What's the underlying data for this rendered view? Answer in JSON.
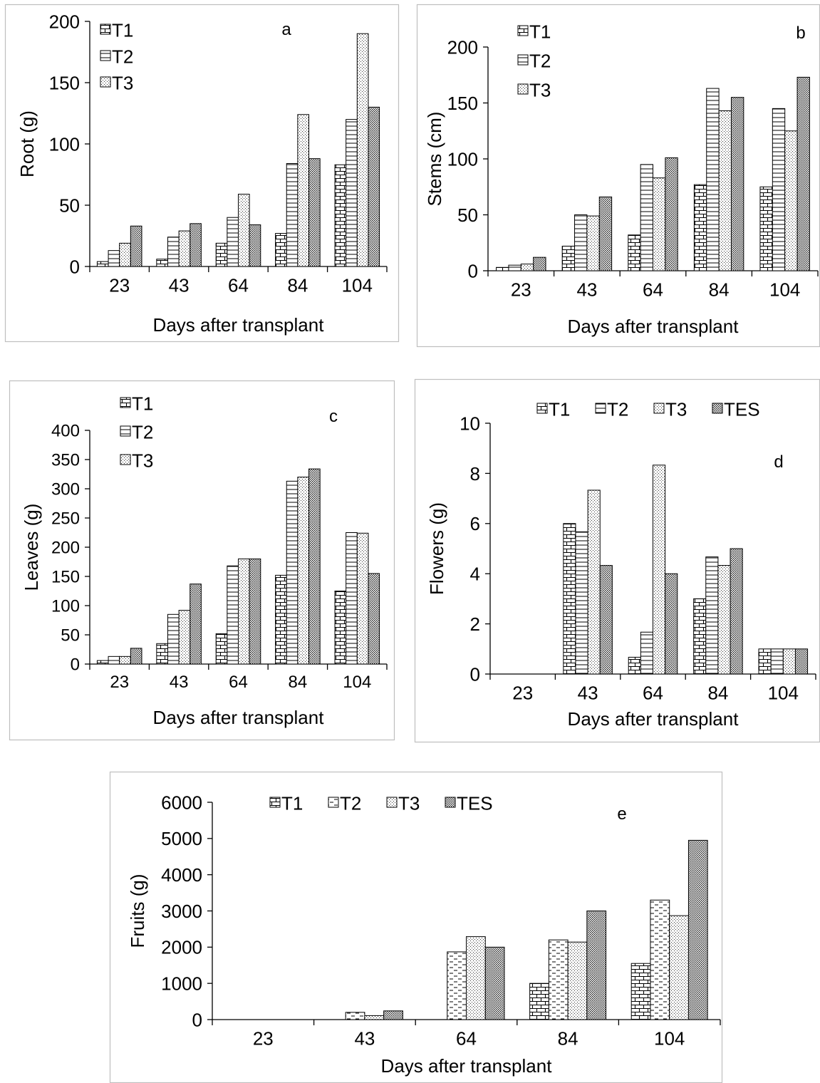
{
  "chart_data": [
    {
      "id": "a",
      "type": "bar",
      "panel_label": "a",
      "xlabel": "Days after transplant",
      "ylabel": "Root (g)",
      "categories": [
        "23",
        "43",
        "64",
        "84",
        "104"
      ],
      "ylim": [
        0,
        200
      ],
      "yticks": [
        0,
        50,
        100,
        150,
        200
      ],
      "legend_layout": "vertical",
      "legend": [
        "T1",
        "T2",
        "T3"
      ],
      "series": [
        {
          "name": "T1",
          "pattern": "brick",
          "values": [
            4,
            6,
            19,
            27,
            83
          ]
        },
        {
          "name": "T2",
          "pattern": "hlines",
          "values": [
            13,
            24,
            40,
            84,
            120
          ]
        },
        {
          "name": "T3",
          "pattern": "dots",
          "values": [
            19,
            29,
            59,
            124,
            190
          ]
        },
        {
          "pattern": "dense",
          "values": [
            33,
            35,
            34,
            88,
            130
          ]
        }
      ]
    },
    {
      "id": "b",
      "type": "bar",
      "panel_label": "b",
      "xlabel": "Days after transplant",
      "ylabel": "Stems (cm)",
      "categories": [
        "23",
        "43",
        "64",
        "84",
        "104"
      ],
      "ylim": [
        0,
        200
      ],
      "yticks": [
        0,
        50,
        100,
        150,
        200
      ],
      "legend_layout": "vertical",
      "legend": [
        "T1",
        "T2",
        "T3"
      ],
      "series": [
        {
          "name": "T1",
          "pattern": "brick",
          "values": [
            3,
            22,
            32,
            77,
            75
          ]
        },
        {
          "name": "T2",
          "pattern": "hlines",
          "values": [
            5,
            50,
            95,
            163,
            145
          ]
        },
        {
          "name": "T3",
          "pattern": "dots",
          "values": [
            6,
            49,
            83,
            143,
            125
          ]
        },
        {
          "pattern": "dense",
          "values": [
            12,
            66,
            101,
            155,
            173
          ]
        }
      ]
    },
    {
      "id": "c",
      "type": "bar",
      "panel_label": "c",
      "xlabel": "Days after transplant",
      "ylabel": "Leaves (g)",
      "categories": [
        "23",
        "43",
        "64",
        "84",
        "104"
      ],
      "ylim": [
        0,
        400
      ],
      "yticks": [
        0,
        50,
        100,
        150,
        200,
        250,
        300,
        350,
        400
      ],
      "legend_layout": "vertical",
      "legend": [
        "T1",
        "T2",
        "T3"
      ],
      "series": [
        {
          "name": "T1",
          "pattern": "brick",
          "values": [
            6,
            35,
            52,
            152,
            125
          ]
        },
        {
          "name": "T2",
          "pattern": "hlines",
          "values": [
            13,
            85,
            168,
            313,
            225
          ]
        },
        {
          "name": "T3",
          "pattern": "dots",
          "values": [
            13,
            92,
            180,
            320,
            224
          ]
        },
        {
          "pattern": "dense",
          "values": [
            27,
            137,
            180,
            334,
            155
          ]
        }
      ]
    },
    {
      "id": "d",
      "type": "bar",
      "panel_label": "d",
      "xlabel": "Days after transplant",
      "ylabel": "Flowers (g)",
      "categories": [
        "23",
        "43",
        "64",
        "84",
        "104"
      ],
      "ylim": [
        0,
        10
      ],
      "yticks": [
        0,
        2,
        4,
        6,
        8,
        10
      ],
      "legend_layout": "horizontal",
      "legend": [
        "T1",
        "T2",
        "T3",
        "TES"
      ],
      "series": [
        {
          "name": "T1",
          "pattern": "brick",
          "values": [
            0,
            6,
            0.67,
            3,
            1
          ]
        },
        {
          "name": "T2",
          "pattern": "hlines",
          "values": [
            0,
            5.67,
            1.67,
            4.67,
            1
          ]
        },
        {
          "name": "T3",
          "pattern": "dots",
          "values": [
            0,
            7.33,
            8.33,
            4.33,
            1
          ]
        },
        {
          "name": "TES",
          "pattern": "dense",
          "values": [
            0,
            4.33,
            4,
            5,
            1
          ]
        }
      ]
    },
    {
      "id": "e",
      "type": "bar",
      "panel_label": "e",
      "xlabel": "Days after transplant",
      "ylabel": "Fruits (g)",
      "categories": [
        "23",
        "43",
        "64",
        "84",
        "104"
      ],
      "ylim": [
        0,
        6000
      ],
      "yticks": [
        0,
        1000,
        2000,
        3000,
        4000,
        5000,
        6000
      ],
      "legend_layout": "horizontal",
      "legend": [
        "T1",
        "T2",
        "T3",
        "TES"
      ],
      "series": [
        {
          "name": "T1",
          "pattern": "brick",
          "values": [
            0,
            0,
            0,
            1000,
            1550
          ]
        },
        {
          "name": "T2",
          "pattern": "dashes",
          "values": [
            0,
            200,
            1870,
            2200,
            3300
          ]
        },
        {
          "name": "T3",
          "pattern": "dots",
          "values": [
            0,
            110,
            2290,
            2140,
            2870
          ]
        },
        {
          "name": "TES",
          "pattern": "dense",
          "values": [
            0,
            240,
            2000,
            3000,
            4950
          ]
        }
      ]
    }
  ]
}
